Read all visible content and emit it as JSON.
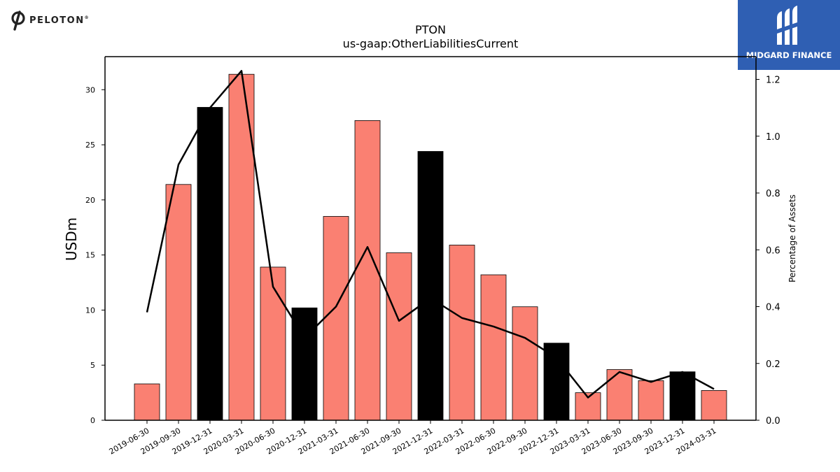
{
  "brand_left": {
    "name": "PELOTON",
    "reg_mark": "®",
    "icon": "peloton-logo-icon"
  },
  "brand_right": {
    "name": "MIDGARD FINANCE",
    "icon": "midgard-logo-icon",
    "color": "#2f5fb3"
  },
  "chart_data": {
    "type": "bar",
    "title": "PTON",
    "subtitle": "us-gaap:OtherLiabilitiesCurrent",
    "ylabel": "USDm",
    "y2label": "Percentage of Assets",
    "categories": [
      "2019-06-30",
      "2019-09-30",
      "2019-12-31",
      "2020-03-31",
      "2020-06-30",
      "2020-12-31",
      "2021-03-31",
      "2021-06-30",
      "2021-09-30",
      "2021-12-31",
      "2022-03-31",
      "2022-06-30",
      "2022-09-30",
      "2022-12-31",
      "2023-03-31",
      "2023-06-30",
      "2023-09-30",
      "2023-12-31",
      "2024-03-31"
    ],
    "series": [
      {
        "values": [
          3.3,
          21.4,
          28.4,
          31.4,
          13.9,
          10.2,
          18.5,
          27.2,
          15.2,
          24.4,
          15.9,
          13.2,
          10.3,
          7.0,
          2.5,
          4.6,
          3.6,
          4.4,
          2.7
        ]
      },
      {
        "axis": "right",
        "type": "line",
        "values": [
          0.38,
          0.9,
          1.1,
          1.23,
          0.47,
          0.29,
          0.4,
          0.61,
          0.35,
          0.43,
          0.36,
          0.33,
          0.29,
          0.22,
          0.08,
          0.17,
          0.135,
          0.17,
          0.11
        ]
      }
    ],
    "bar_colors": [
      "salmon",
      "salmon",
      "black",
      "salmon",
      "salmon",
      "black",
      "salmon",
      "salmon",
      "salmon",
      "black",
      "salmon",
      "salmon",
      "salmon",
      "black",
      "salmon",
      "salmon",
      "salmon",
      "black",
      "salmon"
    ],
    "colors": {
      "salmon": "#fa8072",
      "black": "#000000",
      "line": "#000000"
    },
    "ylim": [
      0,
      33
    ],
    "y2lim": [
      0,
      1.28
    ],
    "yticks": [
      0,
      5,
      10,
      15,
      20,
      25,
      30
    ],
    "y2ticks": [
      0.0,
      0.2,
      0.4,
      0.6,
      0.8,
      1.0,
      1.2
    ],
    "y2tick_labels": [
      "0.0",
      "0.2",
      "0.4",
      "0.6",
      "0.8",
      "1.0",
      "1.2"
    ],
    "grid": false
  }
}
